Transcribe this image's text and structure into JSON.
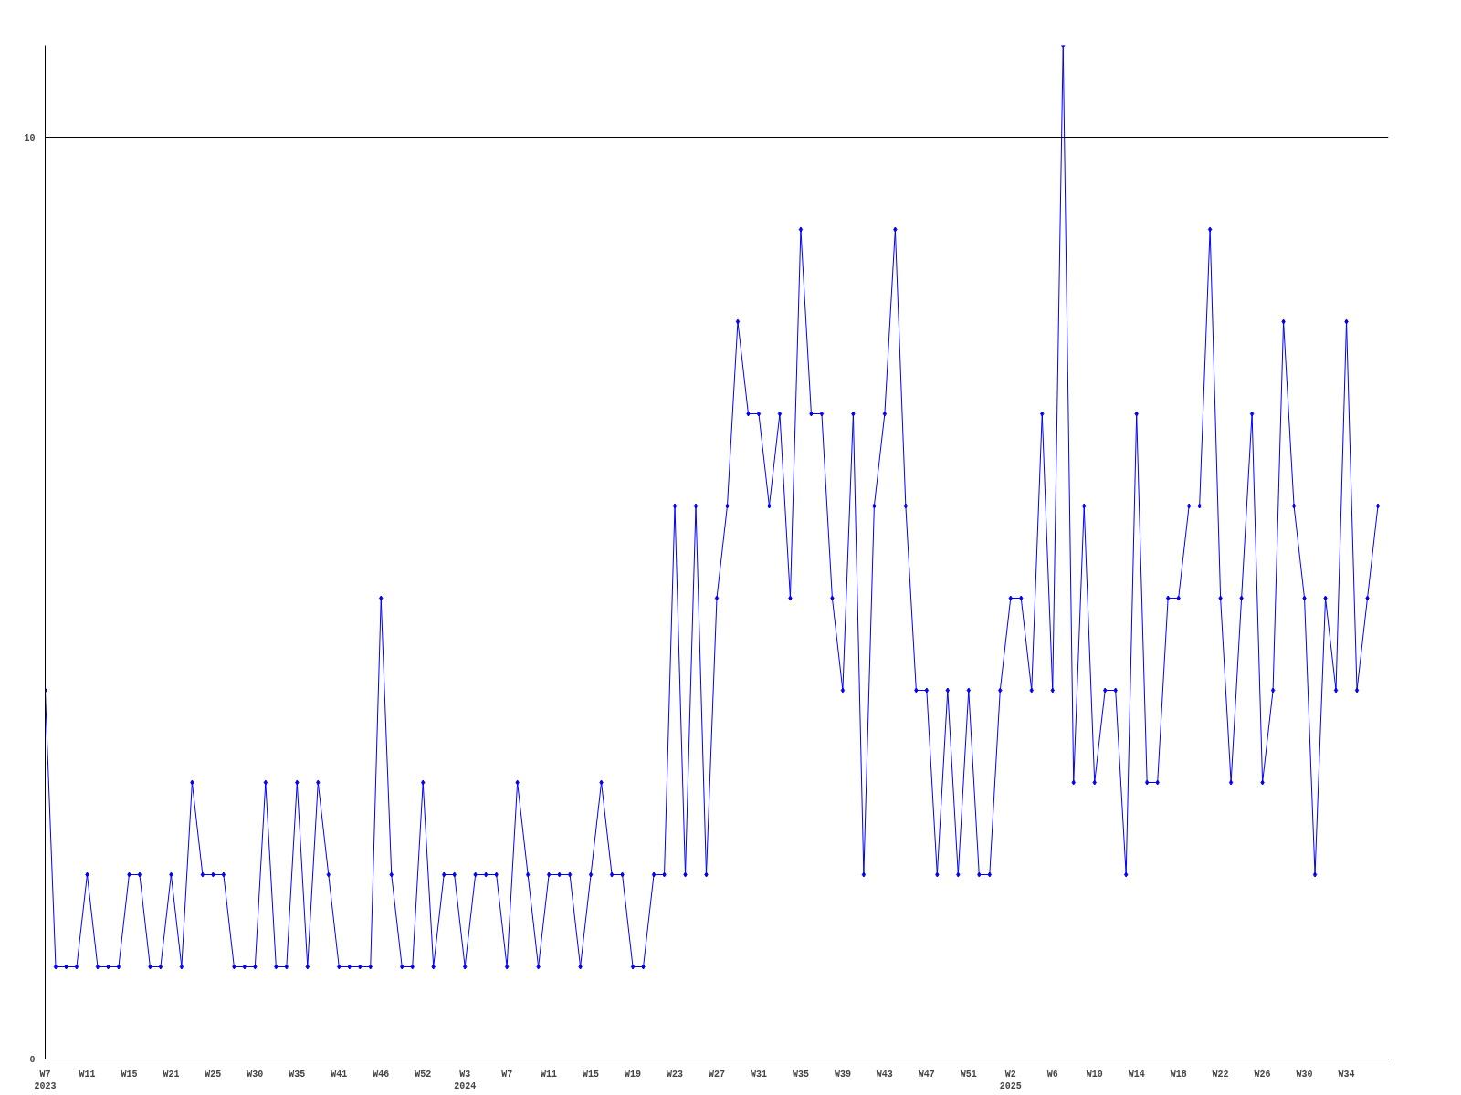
{
  "chart_data": {
    "type": "line",
    "categories": [
      "W7\n2023",
      null,
      null,
      null,
      "W11",
      null,
      null,
      null,
      "W15",
      null,
      null,
      null,
      "W21",
      null,
      null,
      null,
      "W25",
      null,
      null,
      null,
      "W30",
      null,
      null,
      null,
      "W35",
      null,
      null,
      null,
      "W41",
      null,
      null,
      null,
      "W46",
      null,
      null,
      null,
      "W52",
      null,
      null,
      null,
      "W3\n2024",
      null,
      null,
      null,
      "W7",
      null,
      null,
      null,
      "W11",
      null,
      null,
      null,
      "W15",
      null,
      null,
      null,
      "W19",
      null,
      null,
      null,
      "W23",
      null,
      null,
      null,
      "W27",
      null,
      null,
      null,
      "W31",
      null,
      null,
      null,
      "W35",
      null,
      null,
      null,
      "W39",
      null,
      null,
      null,
      "W43",
      null,
      null,
      null,
      "W47",
      null,
      null,
      null,
      "W51",
      null,
      null,
      null,
      "W2\n2025",
      null,
      null,
      null,
      "W6",
      null,
      null,
      null,
      "W10",
      null,
      null,
      null,
      "W14",
      null,
      null,
      null,
      "W18",
      null,
      null,
      null,
      "W22",
      null,
      null,
      null,
      "W26",
      null,
      null,
      null,
      "W30",
      null,
      null,
      null,
      "W34",
      null,
      null,
      null
    ],
    "series": [
      {
        "color": "#0000ff",
        "values": [
          4,
          1,
          1,
          1,
          2,
          1,
          1,
          1,
          2,
          2,
          1,
          1,
          2,
          1,
          3,
          2,
          2,
          2,
          1,
          1,
          1,
          3,
          1,
          1,
          3,
          1,
          3,
          2,
          1,
          1,
          1,
          1,
          5,
          2,
          1,
          1,
          3,
          1,
          2,
          2,
          1,
          2,
          2,
          2,
          1,
          3,
          2,
          1,
          2,
          2,
          2,
          1,
          2,
          3,
          2,
          2,
          1,
          1,
          2,
          2,
          6,
          2,
          6,
          2,
          5,
          6,
          8,
          7,
          7,
          6,
          7,
          5,
          9,
          7,
          7,
          5,
          4,
          7,
          2,
          6,
          7,
          9,
          6,
          4,
          4,
          2,
          4,
          2,
          4,
          2,
          2,
          4,
          5,
          5,
          4,
          7,
          4,
          11,
          3,
          6,
          3,
          4,
          4,
          2,
          7,
          3,
          3,
          5,
          5,
          6,
          6,
          9,
          5,
          3,
          5,
          7,
          3,
          4,
          8,
          6,
          5,
          2,
          5,
          4,
          8,
          4,
          5,
          6
        ]
      }
    ],
    "ylim": [
      0,
      11
    ],
    "yticks": [
      0,
      10
    ],
    "grid": "y",
    "marker": "diamond",
    "line_style": "solid"
  }
}
